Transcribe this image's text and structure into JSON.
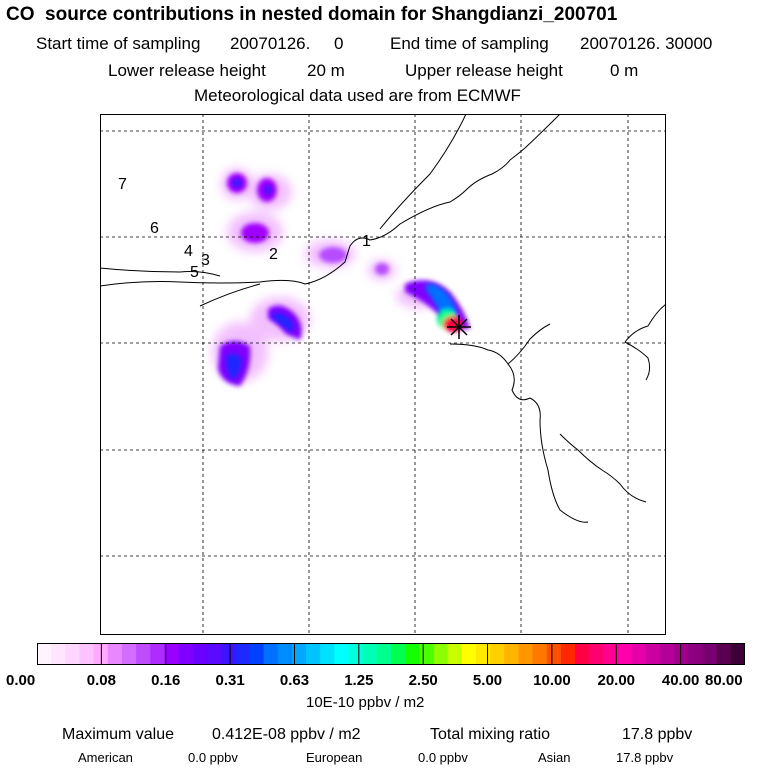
{
  "header": {
    "title": "CO  source contributions in nested domain for Shangdianzi_200701",
    "start_label": "Start time of sampling",
    "start_value": "20070126.     0",
    "end_label": "End time of sampling",
    "end_value": "20070126. 30000",
    "lower_label": "Lower release height",
    "lower_value": "20 m",
    "upper_label": "Upper release height",
    "upper_value": "0 m",
    "met_text": "Meteorological data used are from ECMWF"
  },
  "map": {
    "region_labels": [
      "1",
      "2",
      "3",
      "4",
      "5",
      "6",
      "7"
    ],
    "receptor_marker": "star-icon"
  },
  "colorbar": {
    "ticks": [
      "0.00",
      "0.08",
      "0.16",
      "0.31",
      "0.63",
      "1.25",
      "2.50",
      "5.00",
      "10.00",
      "20.00",
      "40.00",
      "80.00"
    ],
    "units": "10E-10 ppbv / m2",
    "colors": [
      "#fff4ff",
      "#ffe6ff",
      "#ffd6ff",
      "#ffc4ff",
      "#ffaaff",
      "#e987ff",
      "#d36cff",
      "#c04cff",
      "#ad2cff",
      "#9a00ff",
      "#8000ff",
      "#6a00ff",
      "#5a0aff",
      "#3c14ff",
      "#1e28ff",
      "#0040ff",
      "#0070ff",
      "#008cff",
      "#00a8ff",
      "#00c4ff",
      "#00e0ff",
      "#00ffff",
      "#00ffdc",
      "#00ffb4",
      "#00ff8c",
      "#00ff50",
      "#14ff00",
      "#4cff00",
      "#8cff00",
      "#c8ff00",
      "#ffff00",
      "#ffea00",
      "#ffd000",
      "#ffb400",
      "#ff9600",
      "#ff7800",
      "#ff5000",
      "#ff2800",
      "#ff0044",
      "#ff0070",
      "#ff0090",
      "#ff00aa",
      "#e600a8",
      "#cc00a0",
      "#b40096",
      "#a0008a",
      "#8c0080",
      "#780070",
      "#5a0050",
      "#3c0036"
    ]
  },
  "stats": {
    "max_label": "Maximum value",
    "max_value": "0.412E-08 ppbv / m2",
    "total_label": "Total mixing ratio",
    "total_value": "17.8 ppbv",
    "american_label": "American",
    "american_value": "0.0 ppbv",
    "european_label": "European",
    "european_value": "0.0 ppbv",
    "asian_label": "Asian",
    "asian_value": "17.8 ppbv"
  }
}
